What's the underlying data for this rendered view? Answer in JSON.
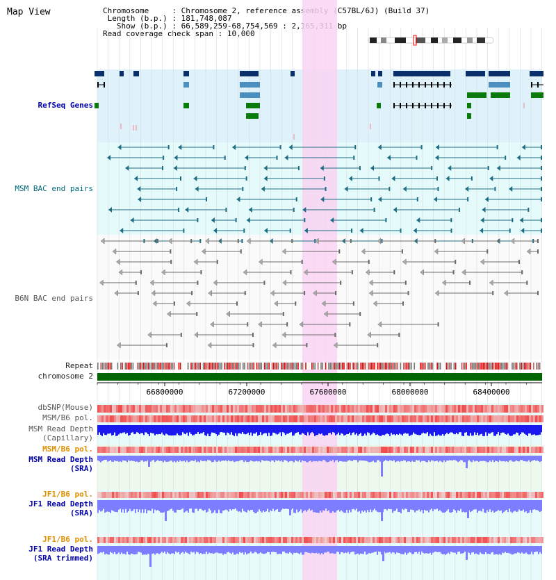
{
  "window": {
    "title": "Map View"
  },
  "info": {
    "chromosome_label": "Chromosome",
    "chromosome_value": "Chromosome 2, reference assembly (C57BL/6J) (Build 37)",
    "length_label": "Length (b.p.)",
    "length_value": "181,748,087",
    "show_label": "Show (b.p.)",
    "show_value": "66,589,259-68,754,569 : 2,165,311 bp",
    "coverage_label": "Read coverage check span",
    "coverage_value": "10,000"
  },
  "tracks": {
    "refseq": "RefSeq Genes",
    "msm_bac": "MSM BAC end pairs",
    "b6n_bac": "B6N BAC end pairs",
    "repeat": "Repeat",
    "chromosome": "chromosome 2",
    "dbsnp": "dbSNP(Mouse)",
    "msm_b6_pol_1": "MSM/B6 pol.",
    "msm_read_depth_cap_1": "MSM Read Depth",
    "msm_read_depth_cap_2": "(Capillary)",
    "msm_b6_pol_2": "MSM/B6 pol.",
    "msm_read_depth_sra_1": "MSM Read Depth",
    "msm_read_depth_sra_2": "(SRA)",
    "jf1_b6_pol_1": "JF1/B6 pol.",
    "jf1_read_depth_sra_1": "JF1 Read Depth",
    "jf1_read_depth_sra_2": "(SRA)",
    "jf1_b6_pol_2": "JF1/B6 pol.",
    "jf1_read_depth_trim_1": "JF1 Read Depth",
    "jf1_read_depth_trim_2": "(SRA trimmed)"
  },
  "ruler": {
    "ticks": [
      "66800000",
      "67200000",
      "67600000",
      "68000000",
      "68400000"
    ]
  },
  "colors": {
    "refseq_bg": "#dff2fc",
    "msm_bac_bg": "#e5fbfb",
    "highlight": "#f9d3f2",
    "chromosome_bar": "#006400",
    "gene_dark": "#0a2f6a",
    "gene_mid": "#4a8fbf",
    "gene_green": "#0a7a0a",
    "bac_teal": "#1e6d84",
    "bac_gray": "#6a6a6a",
    "depth_blue": "#1a1aef",
    "depth_light": "#7d7dff",
    "pol_red": "#f06060"
  }
}
